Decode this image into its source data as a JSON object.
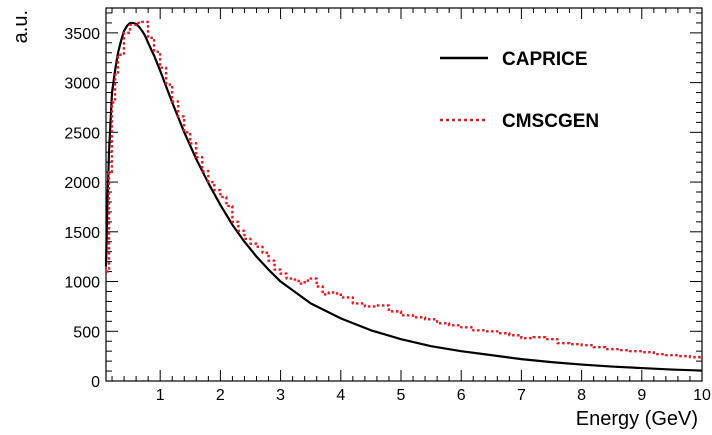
{
  "chart_data": {
    "type": "line",
    "title": "",
    "xlabel": "Energy (GeV)",
    "ylabel": "a.u.",
    "xlim": [
      0.1,
      10
    ],
    "ylim": [
      0,
      3750
    ],
    "x_ticks": [
      1,
      2,
      3,
      4,
      5,
      6,
      7,
      8,
      9,
      10
    ],
    "y_ticks": [
      0,
      500,
      1000,
      1500,
      2000,
      2500,
      3000,
      3500
    ],
    "grid": false,
    "legend_position": "top-right",
    "series": [
      {
        "name": "CAPRICE",
        "style": "solid",
        "color": "#000000",
        "x": [
          0.1,
          0.12,
          0.15,
          0.2,
          0.25,
          0.3,
          0.35,
          0.4,
          0.45,
          0.5,
          0.55,
          0.6,
          0.65,
          0.7,
          0.75,
          0.8,
          0.9,
          1.0,
          1.1,
          1.2,
          1.4,
          1.6,
          1.8,
          2.0,
          2.2,
          2.4,
          2.6,
          2.8,
          3.0,
          3.5,
          4.0,
          4.5,
          5.0,
          5.5,
          6.0,
          6.5,
          7.0,
          7.5,
          8.0,
          8.5,
          9.0,
          9.5,
          10.0
        ],
        "y": [
          1150,
          1700,
          2300,
          2900,
          3120,
          3300,
          3420,
          3520,
          3570,
          3600,
          3600,
          3590,
          3560,
          3520,
          3470,
          3400,
          3270,
          3120,
          2960,
          2800,
          2500,
          2230,
          1990,
          1770,
          1570,
          1400,
          1250,
          1120,
          1000,
          780,
          630,
          510,
          420,
          350,
          300,
          260,
          220,
          190,
          165,
          145,
          130,
          115,
          105
        ]
      },
      {
        "name": "CMSCGEN",
        "style": "dotted",
        "color": "#e8161d",
        "x": [
          0.1,
          0.15,
          0.2,
          0.25,
          0.3,
          0.4,
          0.5,
          0.6,
          0.7,
          0.8,
          0.9,
          1.0,
          1.1,
          1.2,
          1.3,
          1.4,
          1.5,
          1.6,
          1.7,
          1.8,
          1.9,
          2.0,
          2.1,
          2.2,
          2.3,
          2.4,
          2.5,
          2.6,
          2.7,
          2.8,
          2.9,
          3.0,
          3.1,
          3.2,
          3.3,
          3.4,
          3.5,
          3.6,
          3.7,
          3.8,
          3.9,
          4.0,
          4.2,
          4.4,
          4.6,
          4.8,
          5.0,
          5.2,
          5.4,
          5.6,
          5.8,
          6.0,
          6.2,
          6.4,
          6.6,
          6.8,
          7.0,
          7.2,
          7.4,
          7.6,
          7.8,
          8.0,
          8.2,
          8.4,
          8.6,
          8.8,
          9.0,
          9.2,
          9.4,
          9.6,
          9.8,
          10.0
        ],
        "y": [
          1100,
          2100,
          2800,
          3080,
          3280,
          3500,
          3580,
          3600,
          3610,
          3450,
          3310,
          3150,
          2980,
          2810,
          2660,
          2500,
          2390,
          2250,
          2110,
          2000,
          1920,
          1850,
          1760,
          1600,
          1510,
          1430,
          1380,
          1350,
          1290,
          1210,
          1120,
          1080,
          1030,
          1020,
          980,
          1010,
          1030,
          950,
          870,
          890,
          880,
          840,
          780,
          750,
          760,
          700,
          660,
          640,
          620,
          580,
          560,
          540,
          510,
          500,
          480,
          460,
          430,
          440,
          420,
          380,
          370,
          360,
          340,
          320,
          310,
          300,
          290,
          270,
          260,
          250,
          240,
          220
        ]
      }
    ]
  }
}
